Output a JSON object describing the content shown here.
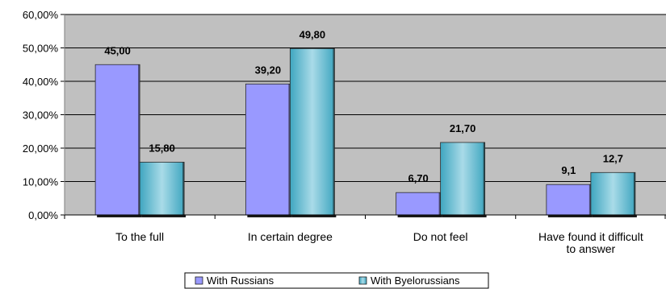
{
  "chart_data": {
    "type": "bar",
    "categories": [
      "To the full",
      "In certain degree",
      "Do not feel",
      "Have found it difficult to answer"
    ],
    "category_lines": [
      [
        "To the full"
      ],
      [
        "In certain degree"
      ],
      [
        "Do not feel"
      ],
      [
        "Have found it difficult",
        "to answer"
      ]
    ],
    "series": [
      {
        "name": "With Russians",
        "values": [
          45.0,
          39.2,
          6.7,
          9.1
        ],
        "labels": [
          "45,00",
          "39,20",
          "6,70",
          "9,1"
        ],
        "color": "#9999ff"
      },
      {
        "name": "With Byelorussians",
        "values": [
          15.8,
          49.8,
          21.7,
          12.7
        ],
        "labels": [
          "15,80",
          "49,80",
          "21,70",
          "12,7"
        ],
        "color": "#4bacc6"
      }
    ],
    "y_ticks": [
      "0,00%",
      "10,00%",
      "20,00%",
      "30,00%",
      "40,00%",
      "50,00%",
      "60,00%"
    ],
    "ylim": [
      0,
      60
    ],
    "y_unit": "%",
    "grid": true,
    "plot_background": "#c0c0c0",
    "legend_position": "bottom",
    "title": "",
    "xlabel": "",
    "ylabel": ""
  }
}
